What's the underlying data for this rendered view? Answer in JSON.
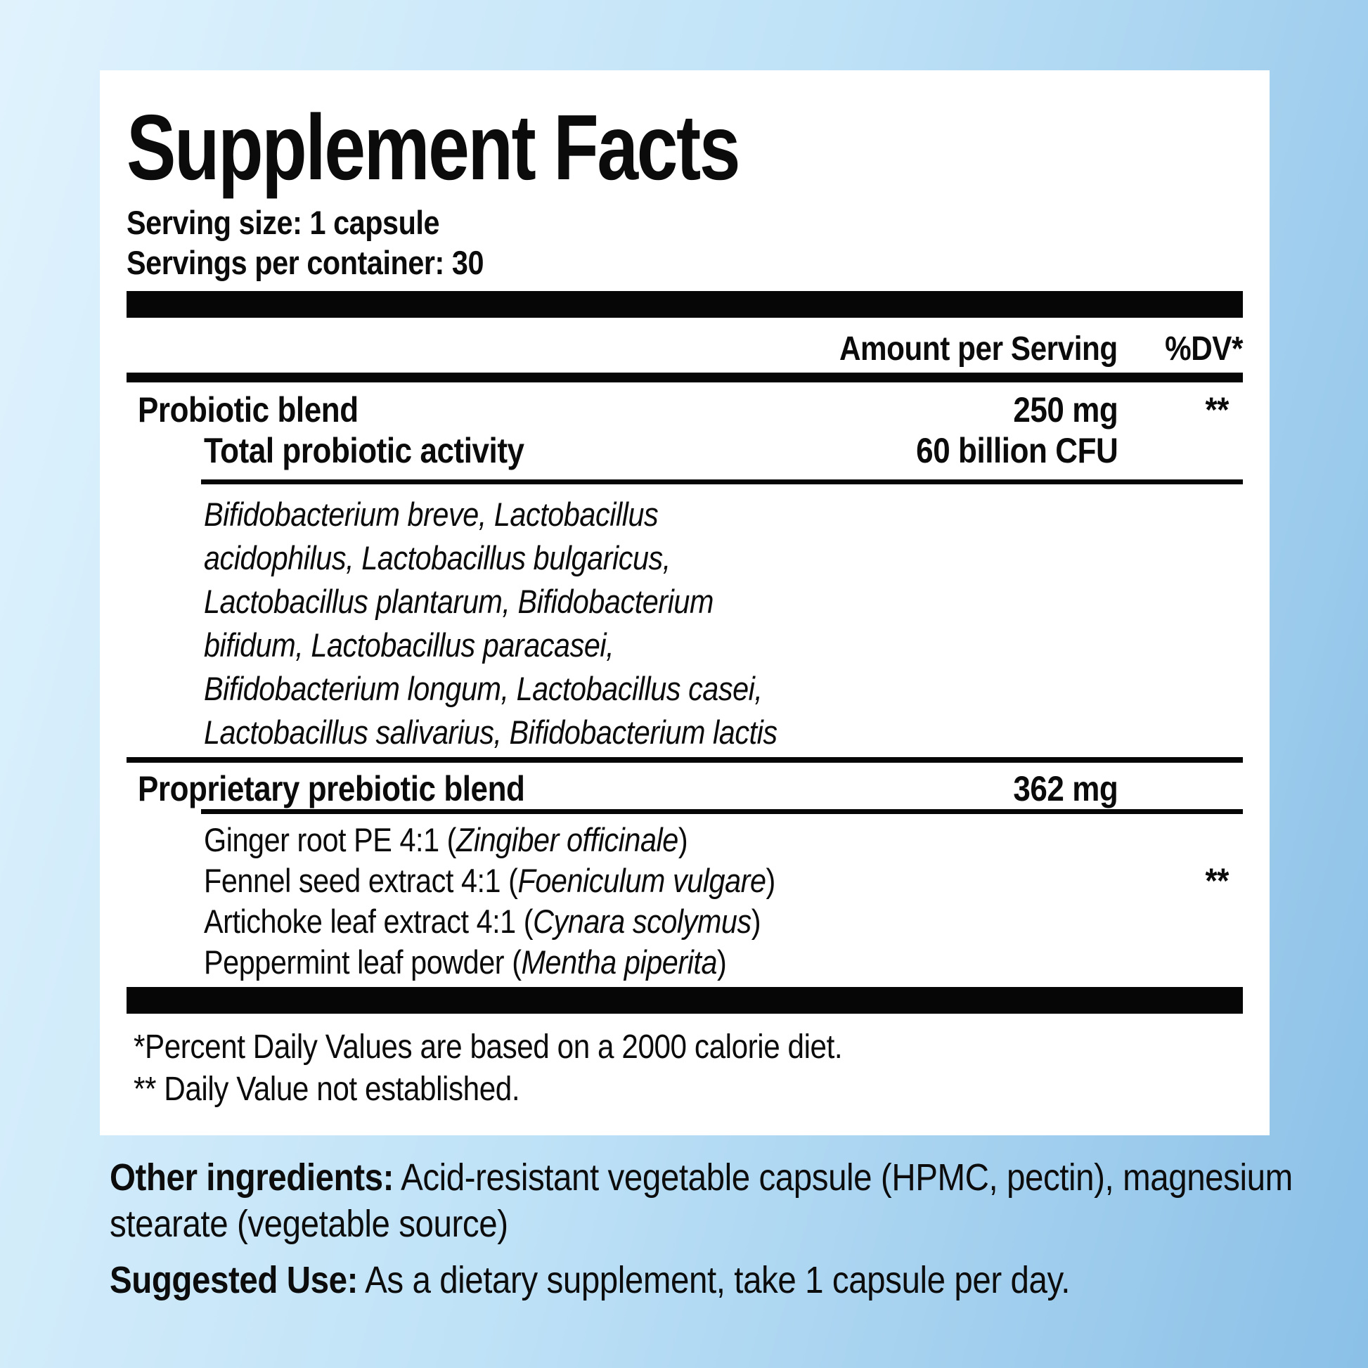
{
  "label": {
    "title": "Supplement Facts",
    "serving_size": "Serving size: 1 capsule",
    "servings_per_container": "Servings per container: 30",
    "header": {
      "amount": "Amount per Serving",
      "dv": "%DV*"
    },
    "probiotic": {
      "name": "Probiotic blend",
      "amount": "250 mg",
      "dv": "**",
      "activity_name": "Total probiotic activity",
      "activity_amount": "60 billion CFU",
      "species": "Bifidobacterium breve, Lactobacillus\nacidophilus, Lactobacillus bulgaricus,\nLactobacillus plantarum, Bifidobacterium\nbifidum, Lactobacillus paracasei,\nBifidobacterium longum, Lactobacillus casei,\nLactobacillus salivarius, Bifidobacterium lactis"
    },
    "prebiotic": {
      "name": "Proprietary prebiotic blend",
      "amount": "362 mg",
      "dv": "**",
      "ingredients": [
        {
          "text": "Ginger root PE 4:1 (",
          "latin": "Zingiber officinale",
          "close": ")"
        },
        {
          "text": "Fennel seed extract 4:1 (",
          "latin": "Foeniculum vulgare",
          "close": ")"
        },
        {
          "text": "Artichoke leaf extract 4:1 (",
          "latin": "Cynara scolymus",
          "close": ")"
        },
        {
          "text": "Peppermint leaf powder (",
          "latin": "Mentha piperita",
          "close": ")"
        }
      ]
    },
    "footnotes": [
      "*Percent Daily Values are based on a 2000 calorie diet.",
      "** Daily Value not established."
    ],
    "other_ingredients": {
      "lead": "Other ingredients:",
      "text": " Acid-resistant vegetable capsule (HPMC, pectin), magnesium stearate (vegetable source)"
    },
    "suggested_use": {
      "lead": "Suggested Use:",
      "text": " As a dietary supplement, take 1 capsule per day."
    }
  },
  "colors": {
    "background_light": "#e0f3fd",
    "background_mid": "#bfe2f7",
    "background_dark": "#8bc0e7",
    "panel": "#ffffff",
    "bars": "#060606",
    "text": "#0b0b0b"
  }
}
